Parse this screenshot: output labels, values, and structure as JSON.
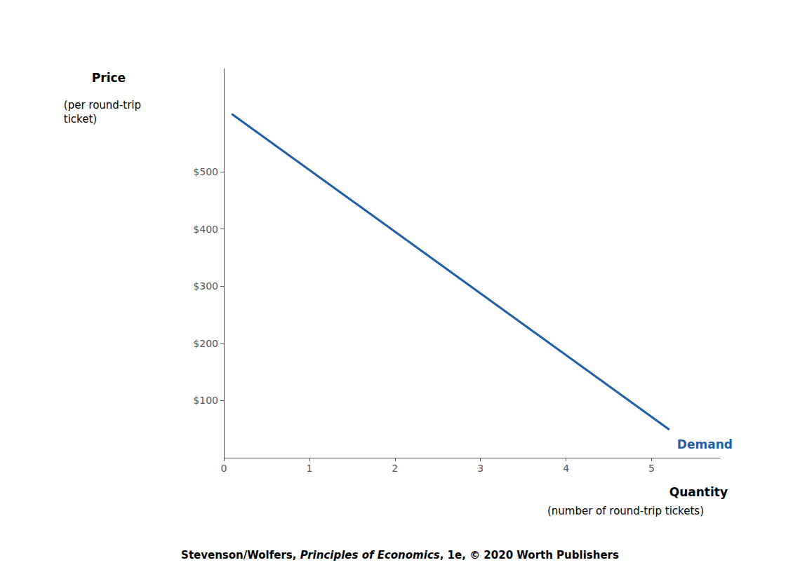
{
  "chart_data": {
    "type": "line",
    "x": [
      0.1,
      5.2
    ],
    "values": [
      600,
      50
    ],
    "color": "#1F5FA6",
    "xlim": [
      0,
      5.8
    ],
    "ylim": [
      0,
      680
    ],
    "xticks": [
      0,
      1,
      2,
      3,
      4,
      5
    ],
    "yticks": [
      {
        "value": 100,
        "label": "$100"
      },
      {
        "value": 200,
        "label": "$200"
      },
      {
        "value": 300,
        "label": "$300"
      },
      {
        "value": 400,
        "label": "$400"
      },
      {
        "value": 500,
        "label": "$500"
      }
    ],
    "grid": false,
    "xlabel": "Quantity",
    "xlabel_sub": "(number of round-trip tickets)",
    "ylabel": "Price",
    "ylabel_sub": "(per round-trip\nticket)",
    "annotations": [
      {
        "text": "Demand",
        "color": "#1F5FA6"
      }
    ],
    "caption": [
      {
        "text": "Stevenson/Wolfers, ",
        "style": "normal"
      },
      {
        "text": "Principles of Economics",
        "style": "italic"
      },
      {
        "text": ", 1e, © 2020 Worth Publishers",
        "style": "normal"
      }
    ]
  }
}
